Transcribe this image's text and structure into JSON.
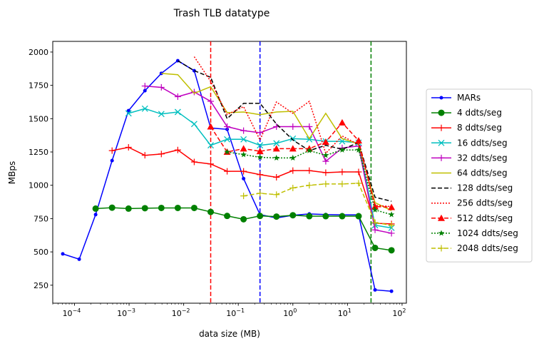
{
  "chart_data": {
    "type": "line",
    "title": "Trash TLB datatype",
    "xlabel": "data size (MB)",
    "ylabel": "MBps",
    "xscale": "log",
    "xlim": [
      4e-05,
      120
    ],
    "ylim": [
      115,
      2080
    ],
    "x_ticks": [
      {
        "value": 0.0001,
        "base": "10",
        "exp": "−4"
      },
      {
        "value": 0.001,
        "base": "10",
        "exp": "−3"
      },
      {
        "value": 0.01,
        "base": "10",
        "exp": "−2"
      },
      {
        "value": 0.1,
        "base": "10",
        "exp": "−1"
      },
      {
        "value": 1,
        "base": "10",
        "exp": "0"
      },
      {
        "value": 10,
        "base": "10",
        "exp": "1"
      },
      {
        "value": 100,
        "base": "10",
        "exp": "2"
      }
    ],
    "y_ticks": [
      250,
      500,
      750,
      1000,
      1250,
      1500,
      1750,
      2000
    ],
    "grid": false,
    "legend_position": "right-outside",
    "vlines": [
      {
        "x": 0.03125,
        "color": "#ff0000"
      },
      {
        "x": 0.25,
        "color": "#0000ff"
      },
      {
        "x": 27,
        "color": "#008000"
      }
    ],
    "series": [
      {
        "name": "MARs",
        "color": "#0000ff",
        "dash": "solid",
        "marker": "dot",
        "x": [
          6.1e-05,
          0.000122,
          0.000244,
          0.000488,
          0.000977,
          0.00195,
          0.0039,
          0.0078,
          0.0156,
          0.03125,
          0.0625,
          0.125,
          0.25,
          0.5,
          1,
          2,
          4,
          8,
          16,
          32,
          64
        ],
        "y": [
          485,
          445,
          780,
          1185,
          1560,
          1710,
          1840,
          1935,
          1860,
          1430,
          1420,
          1050,
          780,
          755,
          775,
          785,
          780,
          778,
          778,
          215,
          205
        ]
      },
      {
        "name": "4 ddts/seg",
        "color": "#008000",
        "dash": "solid",
        "marker": "circle",
        "x": [
          0.000244,
          0.000488,
          0.000977,
          0.00195,
          0.0039,
          0.0078,
          0.0156,
          0.03125,
          0.0625,
          0.125,
          0.25,
          0.5,
          1,
          2,
          4,
          8,
          16,
          32,
          64
        ],
        "y": [
          825,
          832,
          825,
          828,
          830,
          830,
          830,
          800,
          770,
          745,
          770,
          765,
          775,
          768,
          768,
          768,
          768,
          530,
          512
        ]
      },
      {
        "name": "8 ddts/seg",
        "color": "#ff0000",
        "dash": "solid",
        "marker": "plus",
        "x": [
          0.000488,
          0.000977,
          0.00195,
          0.0039,
          0.0078,
          0.0156,
          0.03125,
          0.0625,
          0.125,
          0.25,
          0.5,
          1,
          2,
          4,
          8,
          16,
          32,
          64
        ],
        "y": [
          1260,
          1285,
          1225,
          1235,
          1265,
          1175,
          1160,
          1105,
          1105,
          1080,
          1060,
          1110,
          1110,
          1095,
          1100,
          1100,
          715,
          710
        ]
      },
      {
        "name": "16 ddts/seg",
        "color": "#00bfbf",
        "dash": "solid",
        "marker": "x",
        "x": [
          0.000977,
          0.00195,
          0.0039,
          0.0078,
          0.0156,
          0.03125,
          0.0625,
          0.125,
          0.25,
          0.5,
          1,
          2,
          4,
          8,
          16,
          32,
          64
        ],
        "y": [
          1540,
          1575,
          1535,
          1550,
          1460,
          1300,
          1345,
          1345,
          1300,
          1315,
          1350,
          1345,
          1330,
          1330,
          1320,
          700,
          680
        ]
      },
      {
        "name": "32 ddts/seg",
        "color": "#bf00bf",
        "dash": "solid",
        "marker": "plus",
        "x": [
          0.00195,
          0.0039,
          0.0078,
          0.0156,
          0.03125,
          0.0625,
          0.125,
          0.25,
          0.5,
          1,
          2,
          4,
          8,
          16,
          32,
          64
        ],
        "y": [
          1745,
          1735,
          1665,
          1700,
          1630,
          1440,
          1410,
          1395,
          1440,
          1440,
          1440,
          1180,
          1280,
          1295,
          665,
          640
        ]
      },
      {
        "name": "64 ddts/seg",
        "color": "#bfbf00",
        "dash": "solid",
        "marker": "none",
        "x": [
          0.0039,
          0.0078,
          0.0156,
          0.03125,
          0.0625,
          0.125,
          0.25,
          0.5,
          1,
          2,
          4,
          8,
          16,
          32,
          64
        ],
        "y": [
          1840,
          1830,
          1690,
          1740,
          1545,
          1550,
          1530,
          1550,
          1555,
          1350,
          1540,
          1350,
          1310,
          870,
          810
        ]
      },
      {
        "name": "128 ddts/seg",
        "color": "#000000",
        "dash": "dashed",
        "marker": "none",
        "x": [
          0.0078,
          0.0156,
          0.03125,
          0.0625,
          0.125,
          0.25,
          0.5,
          1,
          2,
          4,
          8,
          16,
          32,
          64
        ],
        "y": [
          1935,
          1860,
          1810,
          1500,
          1615,
          1615,
          1460,
          1340,
          1260,
          1300,
          1270,
          1320,
          910,
          880
        ]
      },
      {
        "name": "256 ddts/seg",
        "color": "#ff0000",
        "dash": "dotted",
        "marker": "none",
        "x": [
          0.0156,
          0.03125,
          0.0625,
          0.125,
          0.25,
          0.5,
          1,
          2,
          4,
          8,
          16,
          32,
          64
        ],
        "y": [
          1965,
          1780,
          1530,
          1590,
          1340,
          1625,
          1540,
          1630,
          1240,
          1370,
          1305,
          850,
          840
        ]
      },
      {
        "name": "512 ddts/seg",
        "color": "#ff0000",
        "dash": "dashed",
        "marker": "triangle",
        "x": [
          0.03125,
          0.0625,
          0.125,
          0.25,
          0.5,
          1,
          2,
          4,
          8,
          16,
          32,
          64
        ],
        "y": [
          1440,
          1250,
          1275,
          1255,
          1275,
          1275,
          1275,
          1325,
          1470,
          1335,
          840,
          835
        ]
      },
      {
        "name": "1024 ddts/seg",
        "color": "#008000",
        "dash": "dotted",
        "marker": "star",
        "x": [
          0.0625,
          0.125,
          0.25,
          0.5,
          1,
          2,
          4,
          8,
          16,
          32,
          64
        ],
        "y": [
          1250,
          1230,
          1210,
          1205,
          1205,
          1260,
          1225,
          1265,
          1265,
          815,
          780
        ]
      },
      {
        "name": "2048 ddts/seg",
        "color": "#bfbf00",
        "dash": "dashed",
        "marker": "plus",
        "x": [
          0.125,
          0.25,
          0.5,
          1,
          2,
          4,
          8,
          16,
          32,
          64
        ],
        "y": [
          920,
          940,
          930,
          980,
          1000,
          1010,
          1010,
          1015,
          720,
          700
        ]
      }
    ]
  }
}
